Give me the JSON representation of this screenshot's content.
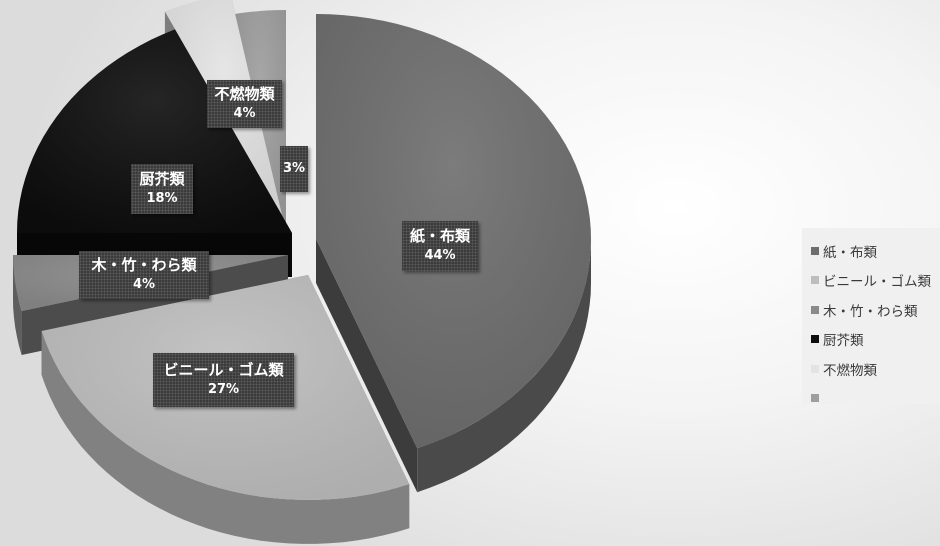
{
  "chart_data": {
    "type": "pie",
    "style": "3d-exploded",
    "title": "",
    "slices": [
      {
        "label": "紙・布類",
        "value": 44,
        "percent_label": "44%",
        "color": "#6d6d6d"
      },
      {
        "label": "ビニール・ゴム類",
        "value": 27,
        "percent_label": "27%",
        "color": "#bdbdbd"
      },
      {
        "label": "木・竹・わら類",
        "value": 4,
        "percent_label": "4%",
        "color": "#8a8a8a"
      },
      {
        "label": "厨芥類",
        "value": 18,
        "percent_label": "18%",
        "color": "#0d0d0d"
      },
      {
        "label": "不燃物類",
        "value": 4,
        "percent_label": "4%",
        "color": "#e3e3e3"
      },
      {
        "label": "",
        "value": 3,
        "percent_label": "3%",
        "color": "#9e9e9e"
      }
    ],
    "legend_position": "right"
  }
}
